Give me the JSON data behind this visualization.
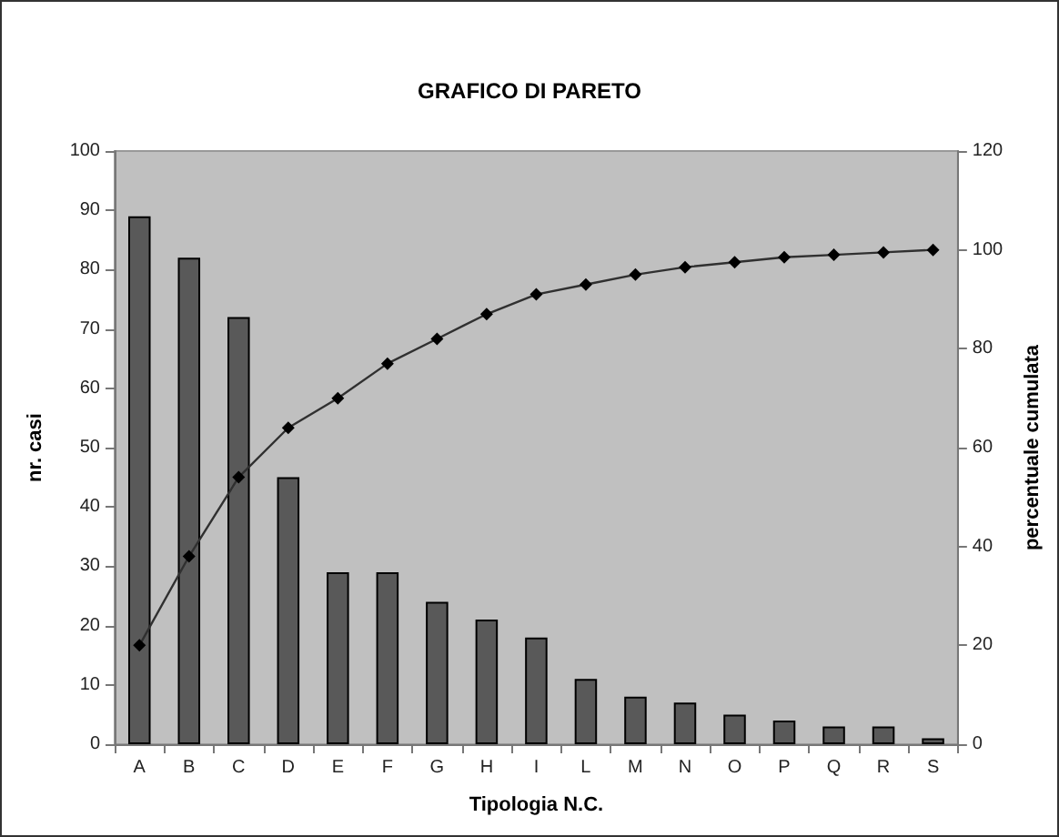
{
  "chart_data": {
    "type": "bar",
    "title": "GRAFICO DI PARETO",
    "xlabel": "Tipologia N.C.",
    "ylabel": "nr. casi",
    "y2label": "percentuale cumulata",
    "categories": [
      "A",
      "B",
      "C",
      "D",
      "E",
      "F",
      "G",
      "H",
      "I",
      "L",
      "M",
      "N",
      "O",
      "P",
      "Q",
      "R",
      "S"
    ],
    "series": [
      {
        "color": "#595959",
        "values": [
          89,
          82,
          72,
          45,
          29,
          29,
          24,
          21,
          18,
          11,
          8,
          7,
          5,
          4,
          3,
          3,
          1
        ]
      },
      {
        "type": "line",
        "axis": "y2",
        "color": "#303030",
        "marker": "diamond",
        "values": [
          20,
          38,
          54,
          64,
          70,
          77,
          82,
          87,
          91,
          93,
          95,
          96.5,
          97.5,
          98.5,
          99,
          99.5,
          100
        ]
      }
    ],
    "ylim": [
      0,
      100
    ],
    "yticks": [
      0,
      10,
      20,
      30,
      40,
      50,
      60,
      70,
      80,
      90,
      100
    ],
    "y2lim": [
      0,
      120
    ],
    "y2ticks": [
      0,
      20,
      40,
      60,
      80,
      100,
      120
    ],
    "grid": false
  }
}
